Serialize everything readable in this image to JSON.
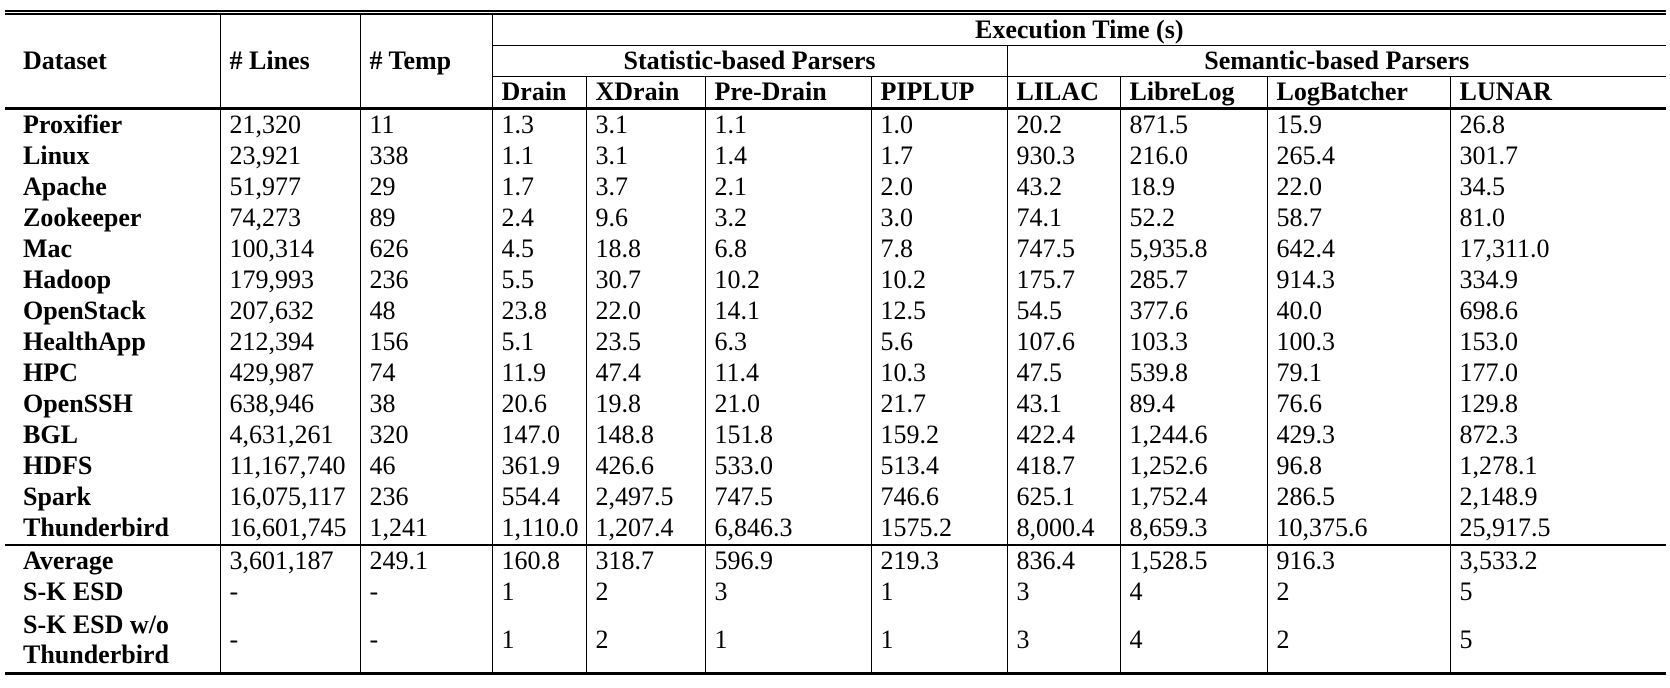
{
  "table": {
    "header": {
      "dataset": "Dataset",
      "lines": "# Lines",
      "temp": "# Temp",
      "execution_time": "Execution Time (s)",
      "groups": [
        {
          "label": "Statistic-based Parsers"
        },
        {
          "label": "Semantic-based Parsers"
        }
      ],
      "parsers": [
        "Drain",
        "XDrain",
        "Pre-Drain",
        "PIPLUP",
        "LILAC",
        "LibreLog",
        "LogBatcher",
        "LUNAR"
      ]
    },
    "rows": [
      {
        "dataset": "Proxifier",
        "lines": "21,320",
        "temp": "11",
        "values": [
          "1.3",
          "3.1",
          "1.1",
          "1.0",
          "20.2",
          "871.5",
          "15.9",
          "26.8"
        ]
      },
      {
        "dataset": "Linux",
        "lines": "23,921",
        "temp": "338",
        "values": [
          "1.1",
          "3.1",
          "1.4",
          "1.7",
          "930.3",
          "216.0",
          "265.4",
          "301.7"
        ]
      },
      {
        "dataset": "Apache",
        "lines": "51,977",
        "temp": "29",
        "values": [
          "1.7",
          "3.7",
          "2.1",
          "2.0",
          "43.2",
          "18.9",
          "22.0",
          "34.5"
        ]
      },
      {
        "dataset": "Zookeeper",
        "lines": "74,273",
        "temp": "89",
        "values": [
          "2.4",
          "9.6",
          "3.2",
          "3.0",
          "74.1",
          "52.2",
          "58.7",
          "81.0"
        ]
      },
      {
        "dataset": "Mac",
        "lines": "100,314",
        "temp": "626",
        "values": [
          "4.5",
          "18.8",
          "6.8",
          "7.8",
          "747.5",
          "5,935.8",
          "642.4",
          "17,311.0"
        ]
      },
      {
        "dataset": "Hadoop",
        "lines": "179,993",
        "temp": "236",
        "values": [
          "5.5",
          "30.7",
          "10.2",
          "10.2",
          "175.7",
          "285.7",
          "914.3",
          "334.9"
        ]
      },
      {
        "dataset": "OpenStack",
        "lines": "207,632",
        "temp": "48",
        "values": [
          "23.8",
          "22.0",
          "14.1",
          "12.5",
          "54.5",
          "377.6",
          "40.0",
          "698.6"
        ]
      },
      {
        "dataset": "HealthApp",
        "lines": "212,394",
        "temp": "156",
        "values": [
          "5.1",
          "23.5",
          "6.3",
          "5.6",
          "107.6",
          "103.3",
          "100.3",
          "153.0"
        ]
      },
      {
        "dataset": "HPC",
        "lines": "429,987",
        "temp": "74",
        "values": [
          "11.9",
          "47.4",
          "11.4",
          "10.3",
          "47.5",
          "539.8",
          "79.1",
          "177.0"
        ]
      },
      {
        "dataset": "OpenSSH",
        "lines": "638,946",
        "temp": "38",
        "values": [
          "20.6",
          "19.8",
          "21.0",
          "21.7",
          "43.1",
          "89.4",
          "76.6",
          "129.8"
        ]
      },
      {
        "dataset": "BGL",
        "lines": "4,631,261",
        "temp": "320",
        "values": [
          "147.0",
          "148.8",
          "151.8",
          "159.2",
          "422.4",
          "1,244.6",
          "429.3",
          "872.3"
        ]
      },
      {
        "dataset": "HDFS",
        "lines": "11,167,740",
        "temp": "46",
        "values": [
          "361.9",
          "426.6",
          "533.0",
          "513.4",
          "418.7",
          "1,252.6",
          "96.8",
          "1,278.1"
        ]
      },
      {
        "dataset": "Spark",
        "lines": "16,075,117",
        "temp": "236",
        "values": [
          "554.4",
          "2,497.5",
          "747.5",
          "746.6",
          "625.1",
          "1,752.4",
          "286.5",
          "2,148.9"
        ]
      },
      {
        "dataset": "Thunderbird",
        "lines": "16,601,745",
        "temp": "1,241",
        "values": [
          "1,110.0",
          "1,207.4",
          "6,846.3",
          "1575.2",
          "8,000.4",
          "8,659.3",
          "10,375.6",
          "25,917.5"
        ]
      }
    ],
    "summary_rows": [
      {
        "dataset": "Average",
        "lines": "3,601,187",
        "temp": "249.1",
        "values": [
          "160.8",
          "318.7",
          "596.9",
          "219.3",
          "836.4",
          "1,528.5",
          "916.3",
          "3,533.2"
        ]
      },
      {
        "dataset": "S-K ESD",
        "lines": "-",
        "temp": "-",
        "values": [
          "1",
          "2",
          "3",
          "1",
          "3",
          "4",
          "2",
          "5"
        ]
      },
      {
        "dataset": "S-K ESD w/o Thunderbird",
        "lines": "-",
        "temp": "-",
        "values": [
          "1",
          "2",
          "1",
          "1",
          "3",
          "4",
          "2",
          "5"
        ]
      }
    ]
  }
}
